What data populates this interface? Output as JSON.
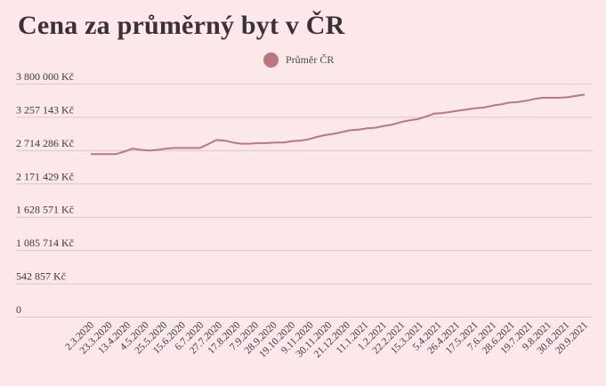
{
  "chart_data": {
    "type": "line",
    "title": "Cena za průměrný byt v ČR",
    "xlabel": "",
    "ylabel": "",
    "ylim": [
      0,
      3800000
    ],
    "yticks": [
      0,
      542857,
      1085714,
      1628571,
      2171429,
      2714286,
      3257143,
      3800000
    ],
    "ytick_labels": [
      "0",
      "542 857 Kč",
      "1 085 714 Kč",
      "1 628 571 Kč",
      "2 171 429 Kč",
      "2 714 286 Kč",
      "3 257 143 Kč",
      "3 800 000 Kč"
    ],
    "xtick_labels": [
      "2.3.2020",
      "23.3.2020",
      "13.4.2020",
      "4.5.2020",
      "25.5.2020",
      "15.6.2020",
      "6.7.2020",
      "27.7.2020",
      "17.8.2020",
      "7.9.2020",
      "28.9.2020",
      "19.10.2020",
      "9.11.2020",
      "30.11.2020",
      "21.12.2020",
      "11.1.2021",
      "1.2.2021",
      "22.2.2021",
      "15.3.2021",
      "5.4.2021",
      "26.4.2021",
      "17.5.2021",
      "7.6.2021",
      "28.6.2021",
      "19.7.2021",
      "9.8.2021",
      "30.8.2021",
      "20.9.2021"
    ],
    "legend_position": "top-center",
    "grid": true,
    "series": [
      {
        "name": "Průměr ČR",
        "color": "#b87880",
        "values": [
          2650000,
          2650000,
          2650000,
          2650000,
          2690000,
          2740000,
          2720000,
          2710000,
          2720000,
          2740000,
          2750000,
          2750000,
          2750000,
          2750000,
          2810000,
          2880000,
          2870000,
          2840000,
          2820000,
          2820000,
          2830000,
          2830000,
          2840000,
          2840000,
          2860000,
          2870000,
          2890000,
          2930000,
          2960000,
          2980000,
          3010000,
          3040000,
          3050000,
          3070000,
          3080000,
          3110000,
          3130000,
          3170000,
          3200000,
          3220000,
          3260000,
          3310000,
          3320000,
          3340000,
          3360000,
          3380000,
          3400000,
          3410000,
          3440000,
          3460000,
          3490000,
          3500000,
          3520000,
          3550000,
          3570000,
          3570000,
          3570000,
          3580000,
          3600000,
          3620000
        ]
      }
    ]
  }
}
